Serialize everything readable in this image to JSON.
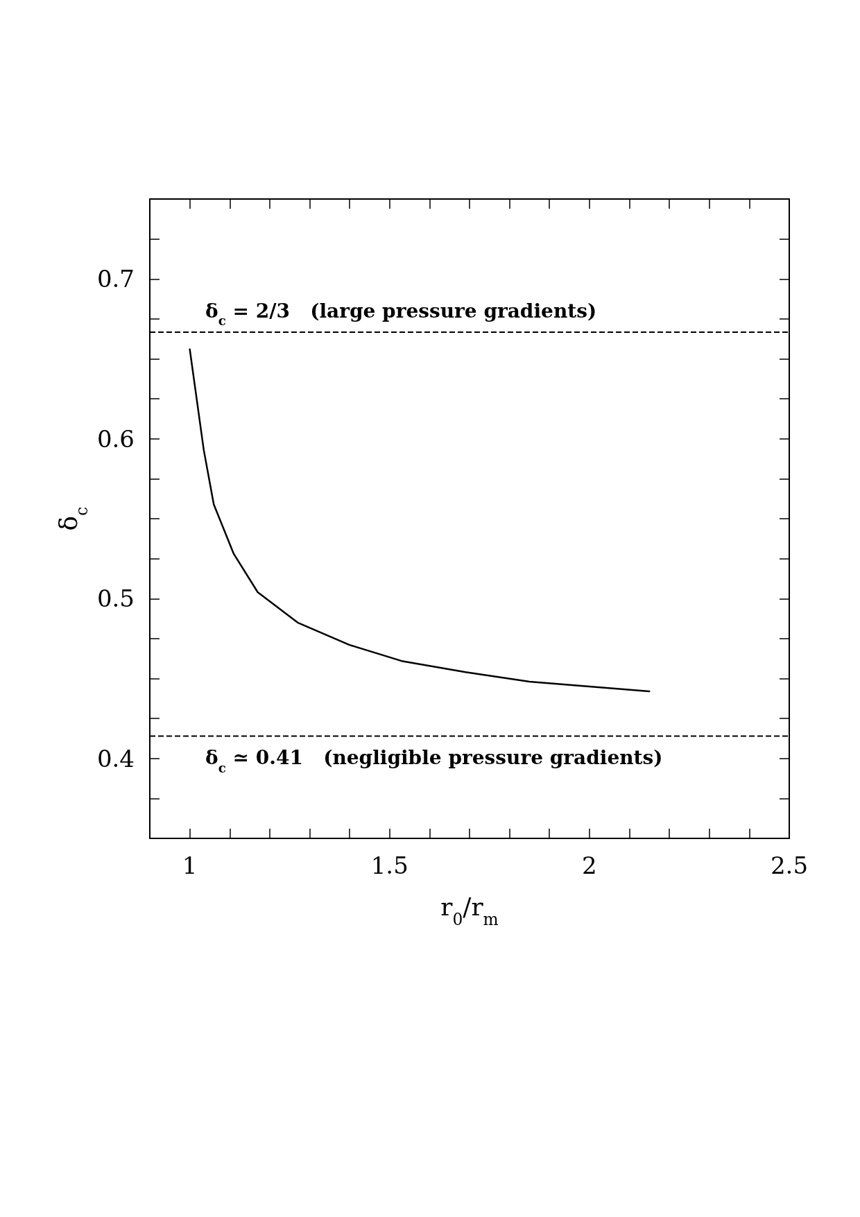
{
  "chart_data": {
    "type": "line",
    "xlabel": "r$_{0}$/r$_{m}$",
    "ylabel": "δ$_{c}$",
    "x": [
      1.0,
      1.035,
      1.06,
      1.11,
      1.17,
      1.27,
      1.4,
      1.53,
      1.69,
      1.85,
      2.15
    ],
    "series": [
      {
        "color": "#000000",
        "values": [
          0.656,
          0.593,
          0.559,
          0.528,
          0.504,
          0.485,
          0.471,
          0.461,
          0.454,
          0.448,
          0.442
        ]
      }
    ],
    "xlim": [
      0.9,
      2.5
    ],
    "xticks": [
      1,
      {
        "value": 1.1,
        "label": null
      },
      {
        "value": 1.2,
        "label": null
      },
      {
        "value": 1.3,
        "label": null
      },
      {
        "value": 1.4,
        "label": null
      },
      1.5,
      {
        "value": 1.6,
        "label": null
      },
      {
        "value": 1.7,
        "label": null
      },
      {
        "value": 1.8,
        "label": null
      },
      {
        "value": 1.9,
        "label": null
      },
      2,
      {
        "value": 2.1,
        "label": null
      },
      {
        "value": 2.2,
        "label": null
      },
      {
        "value": 2.3,
        "label": null
      },
      {
        "value": 2.4,
        "label": null
      },
      2.5
    ],
    "ylim": [
      0.35,
      0.75
    ],
    "yticks": [
      {
        "value": 0.375,
        "label": null
      },
      0.4,
      {
        "value": 0.425,
        "label": null
      },
      {
        "value": 0.45,
        "label": null
      },
      {
        "value": 0.475,
        "label": null
      },
      0.5,
      {
        "value": 0.525,
        "label": null
      },
      {
        "value": 0.55,
        "label": null
      },
      {
        "value": 0.575,
        "label": null
      },
      0.6,
      {
        "value": 0.625,
        "label": null
      },
      {
        "value": 0.65,
        "label": null
      },
      {
        "value": 0.675,
        "label": null
      },
      0.7,
      {
        "value": 0.725,
        "label": null
      }
    ],
    "ref_lines": [
      {
        "axis": "y",
        "value": 0.6667,
        "line_style": "dashed"
      },
      {
        "axis": "y",
        "value": 0.414,
        "line_style": "dashed"
      }
    ],
    "annotations": [
      "δ$_{c}$ = 2/3   (large pressure gradients)",
      "δ$_{c}$ ≃ 0.41   (negligible pressure gradients)"
    ],
    "grid": false,
    "marker": "none",
    "line_style": "solid"
  }
}
